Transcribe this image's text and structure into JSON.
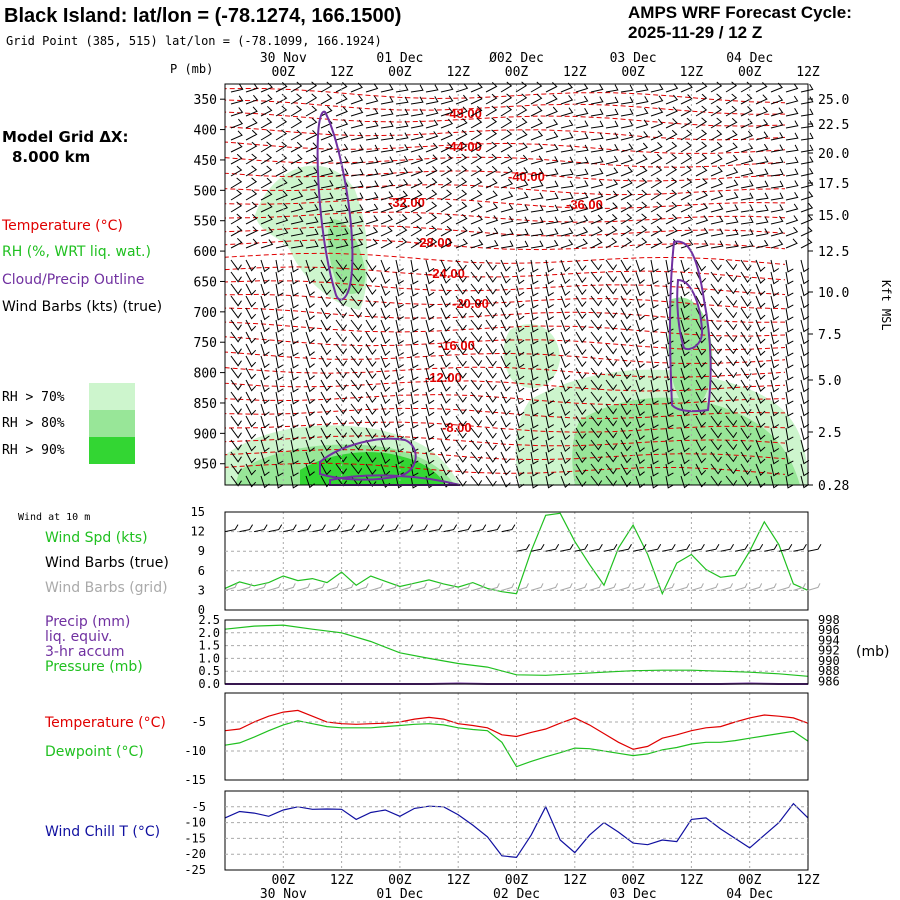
{
  "header": {
    "title": "Black Island:  lat/lon = (-78.1274, 166.1500)",
    "subtitle": "Grid Point (385, 515) lat/lon = (-78.1099, 166.1924)",
    "cycle_label": "AMPS WRF Forecast Cycle:",
    "cycle_value": "2025-11-29 / 12  Z"
  },
  "side": {
    "grid_label": "Model Grid ΔX:",
    "grid_value": "8.000 km",
    "legend_temperature": "Temperature (°C)",
    "legend_rh": "RH (%, WRT liq. wat.)",
    "legend_cloud": "Cloud/Precip Outline",
    "legend_wind": "Wind Barbs (kts) (true)",
    "rh70": "RH > 70%",
    "rh80": "RH > 80%",
    "rh90": "RH > 90%",
    "p_unit": "P (mb)",
    "right_axis_title": "Kft MSL"
  },
  "colors": {
    "temperature": "#e00000",
    "rh": "#20c020",
    "cloud": "#7030a0",
    "precip": "#7030a0",
    "windchill": "#1010a0",
    "rh70": "#cdf5cd",
    "rh80": "#98e698",
    "rh90": "#33d633",
    "grid": "#aaaaaa"
  },
  "time_axis": {
    "top_dates": [
      "30 Nov",
      "01 Dec",
      "Ø02 Dec",
      "03 Dec",
      "04 Dec"
    ],
    "bottom_dates": [
      "30 Nov",
      "01 Dec",
      "02 Dec",
      "03 Dec",
      "04 Dec"
    ],
    "ticks": [
      "00Z",
      "12Z",
      "00Z",
      "12Z",
      "00Z",
      "12Z",
      "00Z",
      "12Z",
      "00Z",
      "12Z"
    ]
  },
  "chart_data": [
    {
      "type": "heatmap",
      "name": "cross-section",
      "y_ticks_mb": [
        350,
        400,
        450,
        500,
        550,
        600,
        650,
        700,
        750,
        800,
        850,
        900,
        950
      ],
      "right_ticks_kft": [
        "25.0",
        "22.5",
        "20.0",
        "17.5",
        "15.0",
        "12.5",
        "10.0",
        "7.5",
        "5.0",
        "2.5",
        "0.28"
      ],
      "temperature_labels": [
        "-48.00",
        "-44.00",
        "-40.00",
        "-36.00",
        "-32.00",
        "-28.00",
        "-24.00",
        "-20.00",
        "-16.00",
        "-12.00",
        "-8.00"
      ],
      "xlim_hours": [
        -12,
        108
      ]
    },
    {
      "type": "line",
      "name": "wind",
      "panel_label": "Wind at 10 m",
      "labels": [
        "Wind Spd (kts)",
        "Wind Barbs (true)",
        "Wind Barbs (grid)"
      ],
      "y_ticks": [
        "0",
        "3",
        "6",
        "9",
        "12",
        "15"
      ],
      "ylim": [
        0,
        15
      ],
      "x": [
        -12,
        -9,
        -6,
        -3,
        0,
        3,
        6,
        9,
        12,
        15,
        18,
        21,
        24,
        27,
        30,
        33,
        36,
        39,
        42,
        45,
        48,
        51,
        54,
        57,
        60,
        63,
        66,
        69,
        72,
        75,
        78,
        81,
        84,
        87,
        90,
        93,
        96,
        99,
        102,
        105,
        108
      ],
      "series": [
        {
          "name": "Wind Spd (kts)",
          "values": [
            3.3,
            4.3,
            3.7,
            4.2,
            5.2,
            4.5,
            4.8,
            4.2,
            5.8,
            3.8,
            5.2,
            4.4,
            3.6,
            4.1,
            4.6,
            4.0,
            3.5,
            4.2,
            3.3,
            2.8,
            2.5,
            9.0,
            14.5,
            14.8,
            10.5,
            7.0,
            3.8,
            9.5,
            13.0,
            8.5,
            2.5,
            7.2,
            8.5,
            6.2,
            5.0,
            5.3,
            9.0,
            13.5,
            10.0,
            4.0,
            3.0
          ]
        }
      ]
    },
    {
      "type": "line",
      "name": "precip-pressure",
      "labels": [
        "Precip (mm)",
        "liq. equiv.",
        "3-hr accum",
        "Pressure (mb)"
      ],
      "left_ticks": [
        "0.0",
        "0.5",
        "1.0",
        "1.5",
        "2.0",
        "2.5"
      ],
      "right_ticks": [
        "998",
        "996",
        "994",
        "992",
        "990",
        "988",
        "986"
      ],
      "right_unit": "(mb)",
      "precip_ylim": [
        0,
        2.5
      ],
      "pressure_ylim": [
        985.5,
        998
      ],
      "x": [
        -12,
        -6,
        0,
        6,
        12,
        18,
        24,
        30,
        36,
        42,
        48,
        54,
        60,
        66,
        72,
        78,
        84,
        90,
        96,
        102,
        108
      ],
      "series": [
        {
          "name": "Pressure (mb)",
          "values": [
            996.2,
            996.8,
            997.0,
            996.2,
            995.5,
            993.8,
            991.6,
            990.5,
            989.5,
            988.8,
            987.3,
            987.2,
            987.5,
            987.8,
            988.1,
            988.2,
            988.2,
            988.0,
            987.8,
            987.5,
            987.0
          ]
        },
        {
          "name": "Precip (mm)",
          "values": [
            0,
            0,
            0,
            0,
            0,
            0,
            0,
            0,
            0.02,
            0,
            0,
            0,
            0,
            0,
            0,
            0,
            0,
            0,
            0.02,
            0,
            0
          ]
        }
      ]
    },
    {
      "type": "line",
      "name": "temperature",
      "labels": [
        "Temperature (°C)",
        "Dewpoint (°C)"
      ],
      "y_ticks": [
        "-5",
        "-10",
        "-15"
      ],
      "ylim": [
        -15,
        0
      ],
      "x": [
        -12,
        -9,
        -6,
        -3,
        0,
        3,
        6,
        9,
        12,
        15,
        18,
        21,
        24,
        27,
        30,
        33,
        36,
        39,
        42,
        45,
        48,
        51,
        54,
        57,
        60,
        63,
        66,
        69,
        72,
        75,
        78,
        81,
        84,
        87,
        90,
        93,
        96,
        99,
        102,
        105,
        108
      ],
      "series": [
        {
          "name": "Temperature (°C)",
          "values": [
            -6.5,
            -6.2,
            -5.0,
            -4.0,
            -3.3,
            -3.0,
            -4.0,
            -5.0,
            -5.3,
            -5.4,
            -5.3,
            -5.2,
            -5.0,
            -4.5,
            -4.2,
            -4.5,
            -5.3,
            -5.6,
            -6.0,
            -7.2,
            -7.5,
            -6.8,
            -6.2,
            -5.2,
            -4.3,
            -5.5,
            -7.0,
            -8.5,
            -9.7,
            -9.2,
            -7.8,
            -7.2,
            -6.5,
            -6.0,
            -5.8,
            -5.0,
            -4.3,
            -3.8,
            -4.0,
            -4.3,
            -5.2
          ]
        },
        {
          "name": "Dewpoint (°C)",
          "values": [
            -9.0,
            -8.6,
            -7.6,
            -6.5,
            -5.5,
            -4.8,
            -5.3,
            -5.8,
            -6.0,
            -6.0,
            -6.0,
            -5.8,
            -5.6,
            -5.4,
            -5.3,
            -5.5,
            -6.0,
            -6.3,
            -6.5,
            -8.5,
            -12.7,
            -11.8,
            -11.0,
            -10.3,
            -9.5,
            -9.6,
            -10.0,
            -10.4,
            -10.8,
            -10.5,
            -9.8,
            -9.4,
            -8.8,
            -8.5,
            -8.5,
            -8.2,
            -7.8,
            -7.4,
            -7.0,
            -6.6,
            -8.3
          ]
        }
      ]
    },
    {
      "type": "line",
      "name": "windchill",
      "labels": [
        "Wind Chill T (°C)"
      ],
      "y_ticks": [
        "-5",
        "-10",
        "-15",
        "-20",
        "-25"
      ],
      "ylim": [
        -25,
        0
      ],
      "x": [
        -12,
        -9,
        -6,
        -3,
        0,
        3,
        6,
        9,
        12,
        15,
        18,
        21,
        24,
        27,
        30,
        33,
        36,
        39,
        42,
        45,
        48,
        51,
        54,
        57,
        60,
        63,
        66,
        69,
        72,
        75,
        78,
        81,
        84,
        87,
        90,
        93,
        96,
        99,
        102,
        105,
        108
      ],
      "series": [
        {
          "name": "Wind Chill T (°C)",
          "values": [
            -8.5,
            -6.5,
            -7.0,
            -8.0,
            -6.0,
            -5.0,
            -5.8,
            -5.7,
            -5.8,
            -9.0,
            -6.8,
            -6.0,
            -8.0,
            -5.5,
            -4.8,
            -5.0,
            -7.5,
            -10.8,
            -14.5,
            -20.5,
            -21.0,
            -14.0,
            -5.0,
            -15.5,
            -19.5,
            -14.0,
            -10.0,
            -13.0,
            -16.5,
            -17.0,
            -15.5,
            -16.0,
            -9.0,
            -8.5,
            -12.0,
            -15.0,
            -18.0,
            -14.0,
            -10.0,
            -4.0,
            -8.5
          ]
        }
      ]
    }
  ]
}
